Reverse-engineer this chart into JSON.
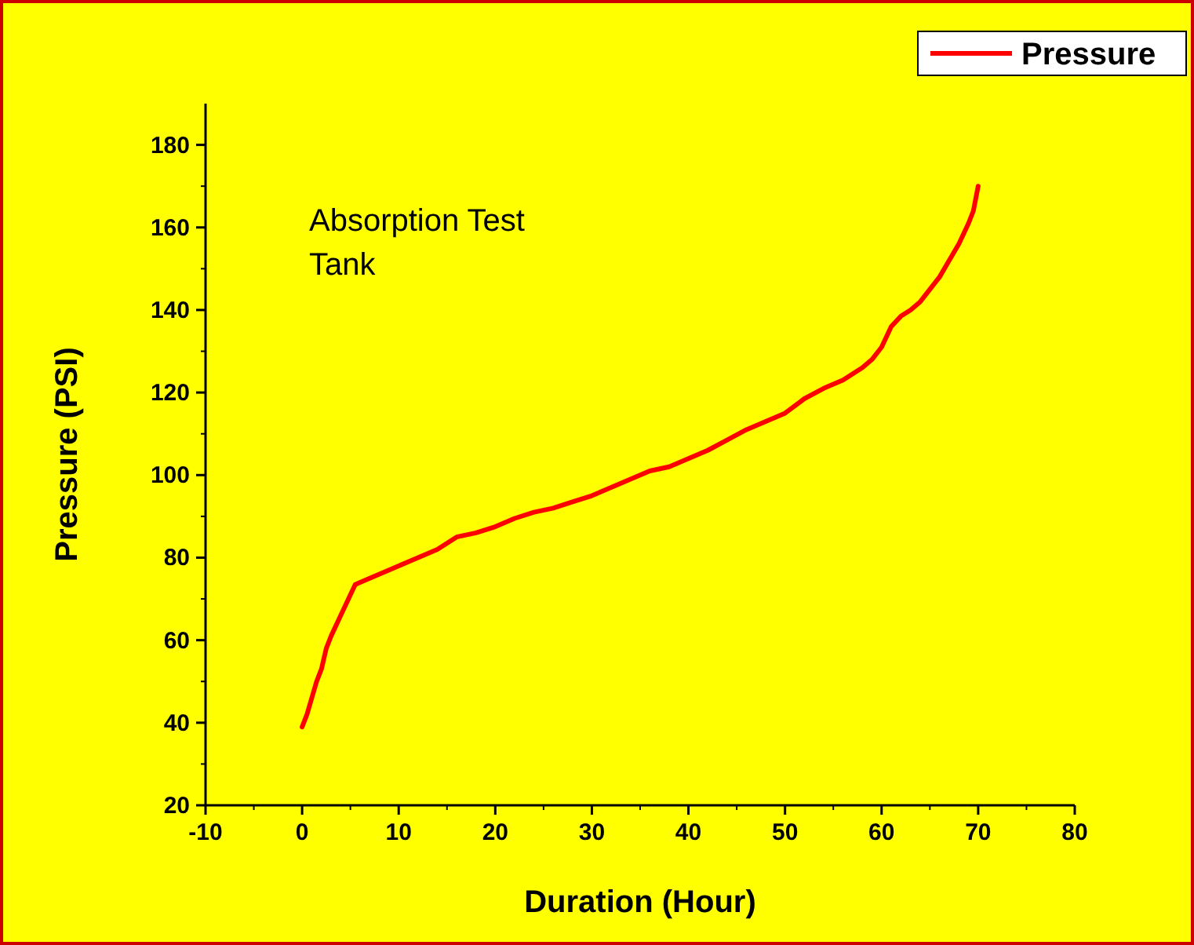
{
  "chart_data": {
    "type": "line",
    "xlabel": "Duration (Hour)",
    "ylabel": "Pressure (PSI)",
    "annotations": [
      "Absorption Test",
      "Tank"
    ],
    "xlim": [
      -10,
      80
    ],
    "xticks": [
      -10,
      0,
      10,
      20,
      30,
      40,
      50,
      60,
      70,
      80
    ],
    "ylim": [
      20,
      190
    ],
    "yticks": [
      20,
      40,
      60,
      80,
      100,
      120,
      140,
      160,
      180
    ],
    "legend": "top right",
    "grid": false,
    "marker": "none",
    "line_style": "solid",
    "series": [
      {
        "name": "Pressure",
        "color": "#ff0000",
        "x": [
          0,
          0.5,
          1,
          1.5,
          2,
          2.5,
          3,
          4,
          5,
          5.5,
          6,
          8,
          10,
          12,
          14,
          16,
          18,
          20,
          22,
          24,
          26,
          28,
          30,
          32,
          34,
          36,
          38,
          40,
          42,
          44,
          46,
          48,
          50,
          52,
          54,
          56,
          58,
          59,
          60,
          61,
          62,
          63,
          64,
          65,
          66,
          67,
          68,
          69,
          69.5,
          70
        ],
        "values": [
          39,
          42,
          46,
          50,
          53,
          58,
          61,
          66,
          71,
          73.5,
          74,
          76,
          78,
          80,
          82,
          85,
          86,
          87.5,
          89.5,
          91,
          92,
          93.5,
          95,
          97,
          99,
          101,
          102,
          104,
          106,
          108.5,
          111,
          113,
          115,
          118.5,
          121,
          123,
          126,
          128,
          131,
          136,
          138.5,
          140,
          142,
          145,
          148,
          152,
          156,
          161,
          164,
          170
        ]
      }
    ]
  }
}
